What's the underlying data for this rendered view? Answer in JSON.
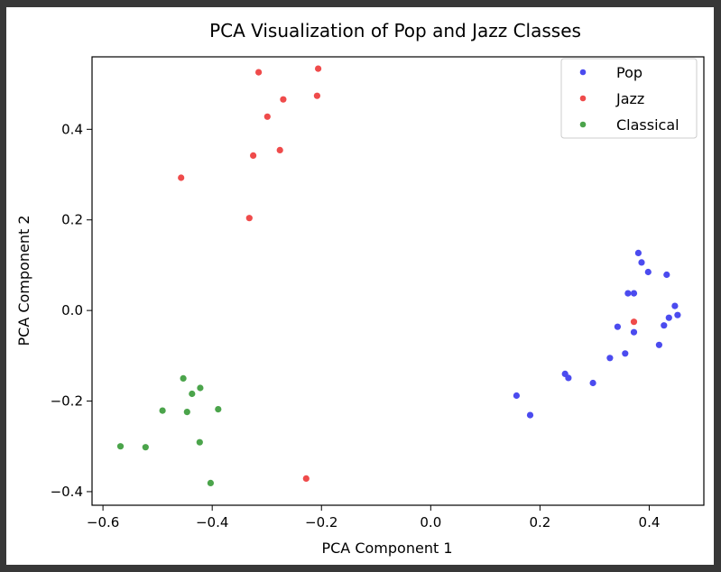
{
  "chart_data": {
    "type": "scatter",
    "title": "PCA Visualization of Pop and Jazz Classes",
    "xlabel": "PCA Component 1",
    "ylabel": "PCA Component 2",
    "xlim": [
      -0.62,
      0.5
    ],
    "ylim": [
      -0.43,
      0.56
    ],
    "xticks": [
      -0.6,
      -0.4,
      -0.2,
      0.0,
      0.2,
      0.4
    ],
    "xtick_labels": [
      "−0.6",
      "−0.4",
      "−0.2",
      "0.0",
      "0.2",
      "0.4"
    ],
    "yticks": [
      -0.4,
      -0.2,
      0.0,
      0.2,
      0.4
    ],
    "ytick_labels": [
      "−0.4",
      "−0.2",
      "0.0",
      "0.2",
      "0.4"
    ],
    "grid": false,
    "legend": "top-right",
    "series": [
      {
        "name": "Pop",
        "color": "#4b4bef",
        "points": [
          [
            0.157,
            -0.188
          ],
          [
            0.182,
            -0.231
          ],
          [
            0.246,
            -0.14
          ],
          [
            0.252,
            -0.149
          ],
          [
            0.297,
            -0.16
          ],
          [
            0.328,
            -0.105
          ],
          [
            0.342,
            -0.036
          ],
          [
            0.356,
            -0.095
          ],
          [
            0.361,
            0.038
          ],
          [
            0.372,
            0.038
          ],
          [
            0.372,
            -0.048
          ],
          [
            0.38,
            0.127
          ],
          [
            0.386,
            0.106
          ],
          [
            0.398,
            0.085
          ],
          [
            0.418,
            -0.076
          ],
          [
            0.427,
            -0.033
          ],
          [
            0.432,
            0.079
          ],
          [
            0.436,
            -0.016
          ],
          [
            0.447,
            0.01
          ],
          [
            0.452,
            -0.01
          ]
        ]
      },
      {
        "name": "Jazz",
        "color": "#ef4b4b",
        "points": [
          [
            -0.457,
            0.293
          ],
          [
            -0.332,
            0.204
          ],
          [
            -0.325,
            0.342
          ],
          [
            -0.315,
            0.526
          ],
          [
            -0.299,
            0.428
          ],
          [
            -0.276,
            0.354
          ],
          [
            -0.27,
            0.466
          ],
          [
            -0.208,
            0.474
          ],
          [
            -0.206,
            0.534
          ],
          [
            -0.228,
            -0.371
          ],
          [
            0.372,
            -0.025
          ]
        ]
      },
      {
        "name": "Classical",
        "color": "#4ba44b",
        "points": [
          [
            -0.568,
            -0.3
          ],
          [
            -0.522,
            -0.302
          ],
          [
            -0.491,
            -0.221
          ],
          [
            -0.453,
            -0.15
          ],
          [
            -0.446,
            -0.224
          ],
          [
            -0.437,
            -0.184
          ],
          [
            -0.423,
            -0.291
          ],
          [
            -0.422,
            -0.171
          ],
          [
            -0.403,
            -0.381
          ],
          [
            -0.389,
            -0.218
          ]
        ]
      }
    ]
  }
}
